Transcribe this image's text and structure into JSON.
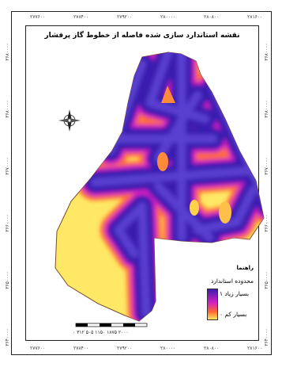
{
  "map": {
    "title": "نقشه استاندارد سازی شده فاصله از خطوط گاز پرفشار",
    "colors": {
      "high": "#3b1fb0",
      "mid": "#d71fc4",
      "transition": "#ff6a2a",
      "low": "#ffe866",
      "background": "#ffffff"
    },
    "top_ticks": [
      "۲۷۷۶۰۰",
      "۲۷۸۴۰۰",
      "۲۷۹۲۰۰",
      "۲۸۰۰۰۰",
      "۲۸۰۸۰۰",
      "۲۸۱۶۰۰"
    ],
    "bottom_ticks": [
      "۲۷۷۶۰۰",
      "۲۷۸۴۰۰",
      "۲۷۹۲۰۰",
      "۲۸۰۰۰۰",
      "۲۸۰۸۰۰",
      "۲۸۱۶۰۰"
    ],
    "left_ticks": [
      "۳۶۸۰۰۰۰",
      "۳۶۸۰۰۰۰",
      "۳۶۷۰۰۰۰",
      "۳۶۶۰۰۰۰",
      "۳۶۵۰۰۰۰",
      "۳۶۴۰۰۰۰"
    ],
    "right_ticks": [
      "۳۶۸۰۰۰۰",
      "۳۶۸۰۰۰۰",
      "۳۶۷۰۰۰۰",
      "۳۶۶۰۰۰۰",
      "۳۶۵۰۰۰۰",
      "۳۶۴۰۰۰۰"
    ],
    "compass_icon": "north-arrow-compass-icon",
    "legend": {
      "heading": "راهنما",
      "title": "محدوده استاندارد",
      "high_label": "بسیار زیاد ۱",
      "low_label": "بسیار کم ۰"
    },
    "scale_bar_text": "۰ ۳۱۲ ۵۰۵ ۱۱۵۰ ۱۸۷۵ ۲۰۰۰"
  }
}
